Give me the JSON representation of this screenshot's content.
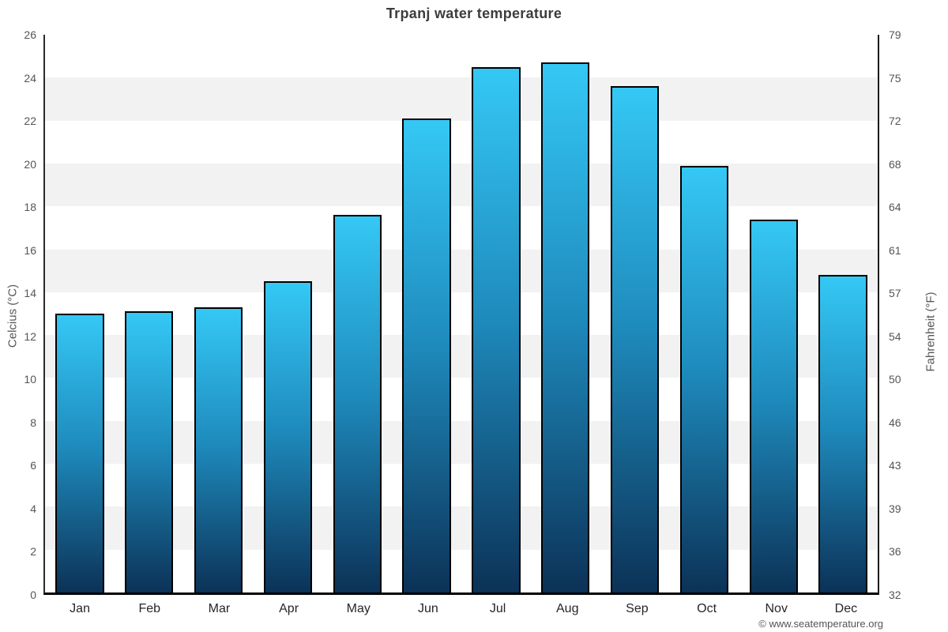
{
  "title": "Trpanj water temperature",
  "y_axis_left": {
    "label": "Celcius (°C)",
    "ticks": [
      0,
      2,
      4,
      6,
      8,
      10,
      12,
      14,
      16,
      18,
      20,
      22,
      24,
      26
    ]
  },
  "y_axis_right": {
    "label": "Fahrenheit (°F)",
    "ticks": [
      "32",
      "36",
      "39",
      "43",
      "46",
      "50",
      "54",
      "57",
      "61",
      "64",
      "68",
      "72",
      "75",
      "79"
    ]
  },
  "footer": "© www.seatemperature.org",
  "chart_data": {
    "type": "bar",
    "title": "Trpanj water temperature",
    "categories": [
      "Jan",
      "Feb",
      "Mar",
      "Apr",
      "May",
      "Jun",
      "Jul",
      "Aug",
      "Sep",
      "Oct",
      "Nov",
      "Dec"
    ],
    "values": [
      13.0,
      13.1,
      13.3,
      14.5,
      17.6,
      22.1,
      24.5,
      24.7,
      23.6,
      19.9,
      17.4,
      14.8
    ],
    "unit": "°C",
    "xlabel": "",
    "ylabel_left": "Celcius (°C)",
    "ylabel_right": "Fahrenheit (°F)",
    "ylim": [
      0,
      26
    ],
    "ylim_fahrenheit": [
      32,
      79
    ],
    "grid": "alternating horizontal gray bands every 2°C (2-4, 6-8, 10-12, 14-16, 18-20, 22-24)",
    "legend": "none",
    "colors": {
      "bar_gradient_top": "#35c8f5",
      "bar_gradient_mid": "#1e8abc",
      "bar_gradient_bottom": "#0c3257",
      "bar_border": "#000000",
      "band_gray": "#f2f2f2",
      "band_white": "#ffffff",
      "title_text": "#3c3c3c",
      "tick_text": "#555555",
      "month_text": "#262626"
    }
  }
}
